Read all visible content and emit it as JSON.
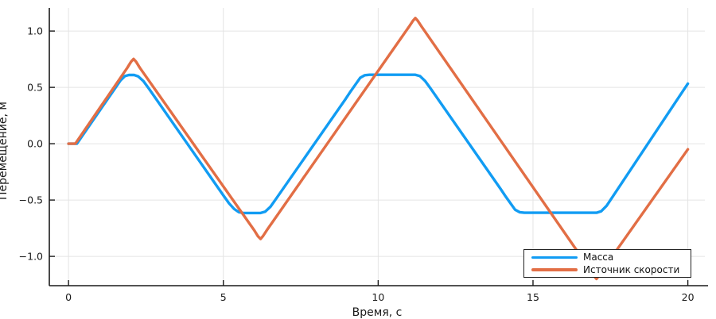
{
  "chart_data": {
    "type": "line",
    "title": "",
    "xlabel": "Время, с",
    "ylabel": "Перемещение, м",
    "xlim": [
      -0.62,
      20.55
    ],
    "ylim": [
      -1.26,
      1.205
    ],
    "grid": true,
    "legend_position": "bottom-right",
    "grid_color": "#e4e4e4",
    "axis_color": "#1a1a1a",
    "tick_label_color": "#1a1a1a",
    "xticks": {
      "values": [
        0,
        5,
        10,
        15,
        20
      ],
      "labels": [
        "0",
        "5",
        "10",
        "15",
        "20"
      ]
    },
    "yticks": {
      "values": [
        -1.0,
        -0.5,
        0.0,
        0.5,
        1.0
      ],
      "labels": [
        "−1.0",
        "−0.5",
        "0.0",
        "0.5",
        "1.0"
      ]
    },
    "series": [
      {
        "name": "Масса",
        "color": "#119cf3",
        "line_width": 3.4,
        "points": [
          [
            0,
            0
          ],
          [
            0.27,
            0
          ],
          [
            1.5,
            0.49
          ],
          [
            1.68,
            0.562
          ],
          [
            1.82,
            0.6
          ],
          [
            1.95,
            0.61
          ],
          [
            2.12,
            0.61
          ],
          [
            2.25,
            0.598
          ],
          [
            2.42,
            0.556
          ],
          [
            2.6,
            0.487
          ],
          [
            5.0,
            -0.458
          ],
          [
            5.18,
            -0.528
          ],
          [
            5.35,
            -0.58
          ],
          [
            5.5,
            -0.607
          ],
          [
            5.65,
            -0.615
          ],
          [
            6.2,
            -0.615
          ],
          [
            6.35,
            -0.603
          ],
          [
            6.52,
            -0.56
          ],
          [
            6.7,
            -0.49
          ],
          [
            8.95,
            0.398
          ],
          [
            9.12,
            0.468
          ],
          [
            9.28,
            0.53
          ],
          [
            9.42,
            0.585
          ],
          [
            9.57,
            0.608
          ],
          [
            9.72,
            0.612
          ],
          [
            11.2,
            0.612
          ],
          [
            11.35,
            0.6
          ],
          [
            11.52,
            0.556
          ],
          [
            11.7,
            0.487
          ],
          [
            13.95,
            -0.4
          ],
          [
            14.12,
            -0.47
          ],
          [
            14.28,
            -0.532
          ],
          [
            14.42,
            -0.585
          ],
          [
            14.57,
            -0.608
          ],
          [
            14.72,
            -0.613
          ],
          [
            17.05,
            -0.613
          ],
          [
            17.2,
            -0.6
          ],
          [
            17.38,
            -0.55
          ],
          [
            20,
            0.533
          ]
        ]
      },
      {
        "name": "Источник скорости",
        "color": "#e26e45",
        "line_width": 3.4,
        "points": [
          [
            0,
            0
          ],
          [
            0.22,
            0
          ],
          [
            1.9,
            0.675
          ],
          [
            2.02,
            0.728
          ],
          [
            2.1,
            0.752
          ],
          [
            2.18,
            0.728
          ],
          [
            2.3,
            0.675
          ],
          [
            6.0,
            -0.77
          ],
          [
            6.12,
            -0.822
          ],
          [
            6.2,
            -0.845
          ],
          [
            6.28,
            -0.82
          ],
          [
            6.4,
            -0.77
          ],
          [
            11.0,
            1.04
          ],
          [
            11.12,
            1.09
          ],
          [
            11.2,
            1.115
          ],
          [
            11.28,
            1.09
          ],
          [
            11.4,
            1.04
          ],
          [
            16.85,
            -1.12
          ],
          [
            16.97,
            -1.175
          ],
          [
            17.05,
            -1.2
          ],
          [
            17.13,
            -1.172
          ],
          [
            17.25,
            -1.12
          ],
          [
            20,
            -0.05
          ]
        ]
      }
    ]
  }
}
